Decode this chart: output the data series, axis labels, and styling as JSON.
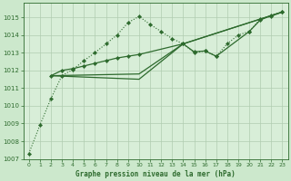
{
  "background_color": "#cce8cc",
  "plot_bg_color": "#d8eed8",
  "grid_color": "#b0ccb0",
  "line_color": "#2d6a2d",
  "title": "Graphe pression niveau de la mer (hPa)",
  "xlim": [
    -0.5,
    23.5
  ],
  "ylim": [
    1007,
    1015.8
  ],
  "xticks": [
    0,
    1,
    2,
    3,
    4,
    5,
    6,
    7,
    8,
    9,
    10,
    11,
    12,
    13,
    14,
    15,
    16,
    17,
    18,
    19,
    20,
    21,
    22,
    23
  ],
  "yticks": [
    1007,
    1008,
    1009,
    1010,
    1011,
    1012,
    1013,
    1014,
    1015
  ],
  "series_dotted": {
    "x": [
      0,
      1,
      2,
      3,
      4,
      5,
      6,
      7,
      8,
      9,
      10,
      11,
      12,
      13,
      14,
      15,
      16,
      17,
      18,
      19,
      20,
      21,
      22,
      23
    ],
    "y": [
      1007.3,
      1008.9,
      1010.4,
      1011.7,
      1012.05,
      1012.55,
      1013.0,
      1013.5,
      1014.0,
      1014.7,
      1015.05,
      1014.6,
      1014.2,
      1013.8,
      1013.5,
      1013.0,
      1013.1,
      1012.8,
      1013.5,
      1014.0,
      1014.2,
      1014.9,
      1015.05,
      1015.3
    ]
  },
  "series_solid1": {
    "x": [
      2,
      3,
      4,
      5,
      6,
      7,
      8,
      9,
      10,
      14,
      15,
      16,
      17,
      20,
      21,
      22,
      23
    ],
    "y": [
      1011.7,
      1012.0,
      1012.1,
      1012.25,
      1012.4,
      1012.55,
      1012.7,
      1012.8,
      1012.9,
      1013.5,
      1013.05,
      1013.1,
      1012.8,
      1014.2,
      1014.85,
      1015.1,
      1015.3
    ]
  },
  "series_solid2": {
    "x": [
      2,
      10,
      14,
      23
    ],
    "y": [
      1011.7,
      1011.8,
      1013.5,
      1015.3
    ]
  },
  "series_solid3": {
    "x": [
      2,
      10,
      14,
      23
    ],
    "y": [
      1011.7,
      1011.5,
      1013.5,
      1015.3
    ]
  }
}
